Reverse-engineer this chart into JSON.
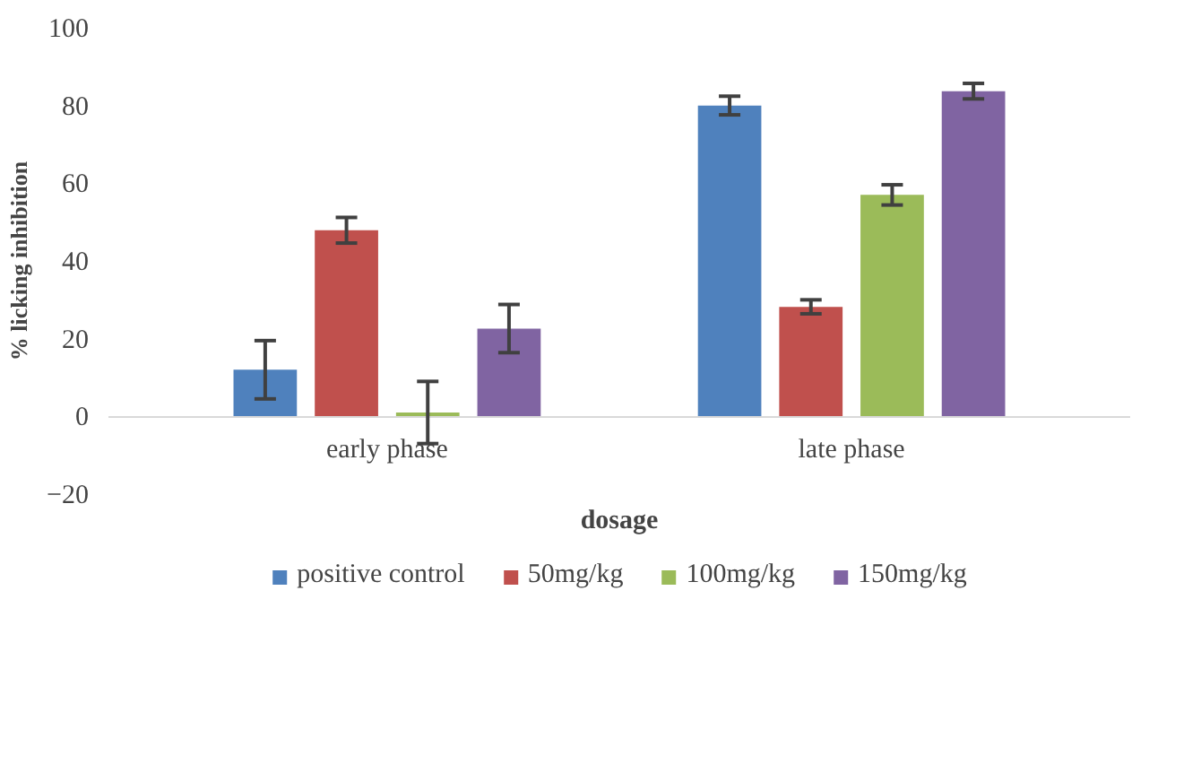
{
  "chart_data": {
    "type": "bar",
    "xlabel": "dosage",
    "ylabel": "% licking inhibition",
    "categories": [
      "early phase",
      "late phase"
    ],
    "series": [
      {
        "name": "positive control",
        "color": "#4f81bd",
        "values": [
          12,
          80
        ],
        "errors": [
          7.5,
          2.4
        ]
      },
      {
        "name": "50mg/kg",
        "color": "#c0504d",
        "values": [
          47.9,
          28.2
        ],
        "errors": [
          3.3,
          1.8
        ]
      },
      {
        "name": "100mg/kg",
        "color": "#9bbb59",
        "values": [
          1,
          57
        ],
        "errors": [
          8,
          2.6
        ]
      },
      {
        "name": "150mg/kg",
        "color": "#8064a2",
        "values": [
          22.6,
          83.7
        ],
        "errors": [
          6.2,
          2
        ]
      }
    ],
    "ylim": [
      -20,
      100
    ],
    "yticks": [
      -20,
      0,
      20,
      40,
      60,
      80,
      100
    ],
    "grid": false,
    "legend": "bottom"
  }
}
